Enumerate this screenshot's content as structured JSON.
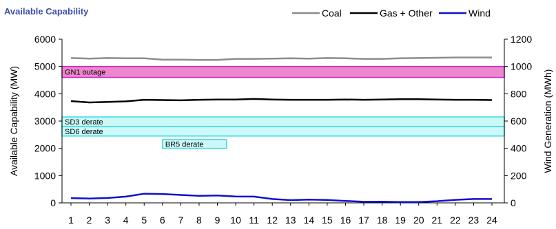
{
  "chart_data": {
    "type": "line",
    "title": "Available Capability",
    "ylabel": "Available Capability (MW)",
    "y2label": "Wind Generation (MWh)",
    "ylim": [
      0,
      6000
    ],
    "y2lim": [
      0,
      1200
    ],
    "yticks": [
      "0",
      "1000",
      "2000",
      "3000",
      "4000",
      "5000",
      "6000"
    ],
    "y2ticks": [
      "0",
      "200",
      "400",
      "600",
      "800",
      "1000",
      "1200"
    ],
    "categories": [
      "1",
      "2",
      "3",
      "4",
      "5",
      "6",
      "7",
      "8",
      "9",
      "10",
      "11",
      "12",
      "13",
      "14",
      "15",
      "16",
      "17",
      "18",
      "19",
      "20",
      "21",
      "22",
      "23",
      "24"
    ],
    "legend_position": "top-right",
    "series": [
      {
        "name": "Coal",
        "axis": "left",
        "color": "#8c8c8c",
        "values": [
          5310,
          5290,
          5310,
          5300,
          5300,
          5250,
          5250,
          5240,
          5240,
          5280,
          5280,
          5290,
          5300,
          5290,
          5310,
          5300,
          5280,
          5280,
          5300,
          5310,
          5320,
          5330,
          5330,
          5330
        ]
      },
      {
        "name": "Gas + Other",
        "axis": "left",
        "color": "#000000",
        "values": [
          3730,
          3680,
          3700,
          3720,
          3780,
          3770,
          3760,
          3780,
          3790,
          3790,
          3810,
          3790,
          3780,
          3780,
          3780,
          3790,
          3780,
          3790,
          3800,
          3800,
          3790,
          3780,
          3780,
          3770
        ]
      },
      {
        "name": "Wind",
        "axis": "right",
        "color": "#1010cc",
        "values": [
          35,
          32,
          36,
          46,
          67,
          65,
          58,
          52,
          54,
          47,
          46,
          28,
          20,
          24,
          21,
          14,
          8,
          9,
          6,
          6,
          12,
          22,
          28,
          28
        ]
      }
    ],
    "bands": [
      {
        "label": "GN1 outage",
        "y_low": 4600,
        "y_high": 5000,
        "x_start": 1,
        "x_end": 24,
        "fill": "#ee88cc",
        "stroke": "#cc22cc"
      },
      {
        "label": "SD3 derate",
        "y_low": 2800,
        "y_high": 3150,
        "x_start": 1,
        "x_end": 24,
        "fill": "#ccf8f8",
        "stroke": "#33dddd"
      },
      {
        "label": "SD6 derate",
        "y_low": 2450,
        "y_high": 2800,
        "x_start": 1,
        "x_end": 24,
        "fill": "#ccf8f8",
        "stroke": "#33dddd"
      },
      {
        "label": "BR5 derate",
        "y_low": 2000,
        "y_high": 2320,
        "x_start": 6,
        "x_end": 9.5,
        "fill": "#ccf8f8",
        "stroke": "#33dddd"
      }
    ]
  }
}
